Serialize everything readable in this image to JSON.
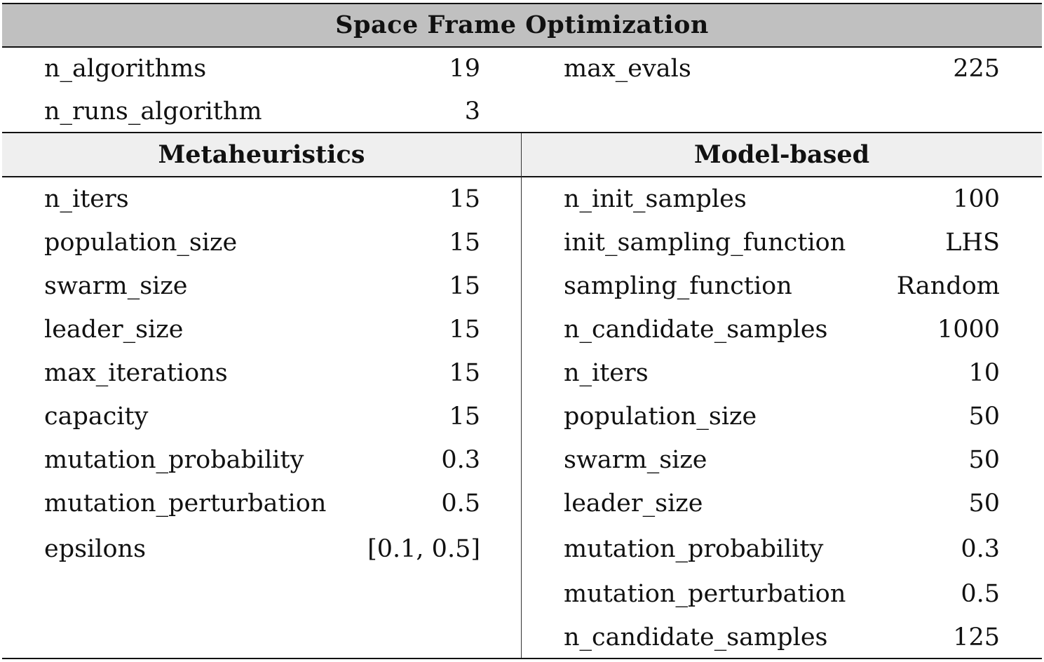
{
  "title": "Space Frame Optimization",
  "general": {
    "left": [
      {
        "key": "n_algorithms",
        "value": "19"
      },
      {
        "key": "n_runs_algorithm",
        "value": "3"
      }
    ],
    "right": [
      {
        "key": "max_evals",
        "value": "225"
      }
    ]
  },
  "columns": {
    "left_header": "Metaheuristics",
    "right_header": "Model-based"
  },
  "metaheuristics": [
    {
      "key": "n_iters",
      "value": "15"
    },
    {
      "key": "population_size",
      "value": "15"
    },
    {
      "key": "swarm_size",
      "value": "15"
    },
    {
      "key": "leader_size",
      "value": "15"
    },
    {
      "key": "max_iterations",
      "value": "15"
    },
    {
      "key": "capacity",
      "value": "15"
    },
    {
      "key": "mutation_probability",
      "value": "0.3"
    },
    {
      "key": "mutation_perturbation",
      "value": "0.5"
    },
    {
      "key": "epsilons",
      "value": "[0.1, 0.5]"
    }
  ],
  "model_based": [
    {
      "key": "n_init_samples",
      "value": "100"
    },
    {
      "key": "init_sampling_function",
      "value": "LHS"
    },
    {
      "key": "sampling_function",
      "value": "Random"
    },
    {
      "key": "n_candidate_samples",
      "value": "1000"
    },
    {
      "key": "n_iters",
      "value": "10"
    },
    {
      "key": "population_size",
      "value": "50"
    },
    {
      "key": "swarm_size",
      "value": "50"
    },
    {
      "key": "leader_size",
      "value": "50"
    },
    {
      "key": "mutation_probability",
      "value": "0.3"
    },
    {
      "key": "mutation_perturbation",
      "value": "0.5"
    },
    {
      "key": "n_candidate_samples",
      "value": "125"
    }
  ]
}
